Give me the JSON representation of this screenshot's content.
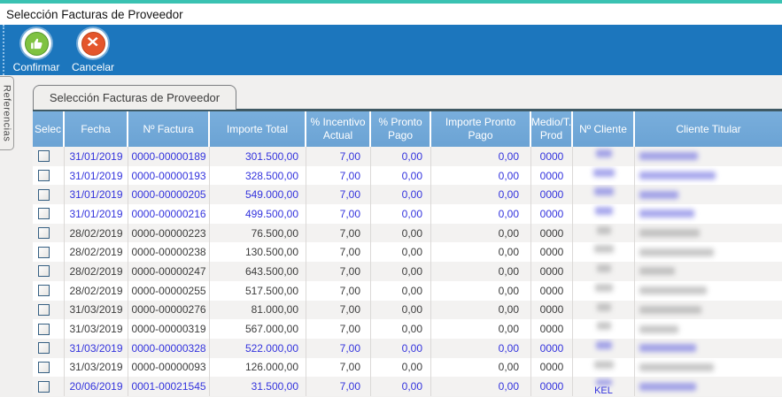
{
  "window": {
    "title": "Selección Facturas de Proveedor"
  },
  "toolbar": {
    "confirm_label": "Confirmar",
    "cancel_label": "Cancelar"
  },
  "side_tab": {
    "label": "Referencias"
  },
  "tab": {
    "label": "Selección Facturas de Proveedor"
  },
  "icons": {
    "confirm": "thumbs-up-icon",
    "cancel": "cancel-x-icon"
  },
  "colors": {
    "top_strip": "#3AC2B2",
    "toolbar_bg": "#1C76BD",
    "header_bg": "#72A9DA",
    "confirm_green": "#7FC241",
    "cancel_red": "#E4562C",
    "row_alt_bg": "#F3F2F1",
    "highlight_text": "#3333DD",
    "normal_text": "#3C3C3C"
  },
  "table": {
    "columns": [
      {
        "key": "selec",
        "label": "Selec"
      },
      {
        "key": "fecha",
        "label": "Fecha"
      },
      {
        "key": "factura",
        "label": "Nº Factura"
      },
      {
        "key": "importe_total",
        "label": "Importe Total"
      },
      {
        "key": "incentivo",
        "label": "% Incentivo Actual"
      },
      {
        "key": "pronto_pago",
        "label": "% Pronto Pago"
      },
      {
        "key": "importe_pronto",
        "label": "Importe Pronto Pago"
      },
      {
        "key": "medio",
        "label": "Medio/T. Prod"
      },
      {
        "key": "cliente_num",
        "label": "Nº Cliente"
      },
      {
        "key": "cliente_titular",
        "label": "Cliente Titular"
      }
    ],
    "rows": [
      {
        "checked": false,
        "fecha": "31/01/2019",
        "factura": "0000-00000189",
        "importe_total": "301.500,00",
        "incentivo": "7,00",
        "pronto_pago": "0,00",
        "importe_pronto": "0,00",
        "medio": "0000",
        "cliente_num_redacted_w": 18,
        "cliente_titular_redacted_w": 66,
        "highlighted": true,
        "cliente_num_visible": ""
      },
      {
        "checked": false,
        "fecha": "31/01/2019",
        "factura": "0000-00000193",
        "importe_total": "328.500,00",
        "incentivo": "7,00",
        "pronto_pago": "0,00",
        "importe_pronto": "0,00",
        "medio": "0000",
        "cliente_num_redacted_w": 24,
        "cliente_titular_redacted_w": 86,
        "highlighted": true,
        "cliente_num_visible": ""
      },
      {
        "checked": false,
        "fecha": "31/01/2019",
        "factura": "0000-00000205",
        "importe_total": "549.000,00",
        "incentivo": "7,00",
        "pronto_pago": "0,00",
        "importe_pronto": "0,00",
        "medio": "0000",
        "cliente_num_redacted_w": 22,
        "cliente_titular_redacted_w": 44,
        "highlighted": true,
        "cliente_num_visible": ""
      },
      {
        "checked": false,
        "fecha": "31/01/2019",
        "factura": "0000-00000216",
        "importe_total": "499.500,00",
        "incentivo": "7,00",
        "pronto_pago": "0,00",
        "importe_pronto": "0,00",
        "medio": "0000",
        "cliente_num_redacted_w": 20,
        "cliente_titular_redacted_w": 62,
        "highlighted": true,
        "cliente_num_visible": ""
      },
      {
        "checked": false,
        "fecha": "28/02/2019",
        "factura": "0000-00000223",
        "importe_total": "76.500,00",
        "incentivo": "7,00",
        "pronto_pago": "0,00",
        "importe_pronto": "0,00",
        "medio": "0000",
        "cliente_num_redacted_w": 16,
        "cliente_titular_redacted_w": 68,
        "highlighted": false,
        "cliente_num_visible": ""
      },
      {
        "checked": false,
        "fecha": "28/02/2019",
        "factura": "0000-00000238",
        "importe_total": "130.500,00",
        "incentivo": "7,00",
        "pronto_pago": "0,00",
        "importe_pronto": "0,00",
        "medio": "0000",
        "cliente_num_redacted_w": 22,
        "cliente_titular_redacted_w": 84,
        "highlighted": false,
        "cliente_num_visible": ""
      },
      {
        "checked": false,
        "fecha": "28/02/2019",
        "factura": "0000-00000247",
        "importe_total": "643.500,00",
        "incentivo": "7,00",
        "pronto_pago": "0,00",
        "importe_pronto": "0,00",
        "medio": "0000",
        "cliente_num_redacted_w": 16,
        "cliente_titular_redacted_w": 40,
        "highlighted": false,
        "cliente_num_visible": ""
      },
      {
        "checked": false,
        "fecha": "28/02/2019",
        "factura": "0000-00000255",
        "importe_total": "517.500,00",
        "incentivo": "7,00",
        "pronto_pago": "0,00",
        "importe_pronto": "0,00",
        "medio": "0000",
        "cliente_num_redacted_w": 20,
        "cliente_titular_redacted_w": 76,
        "highlighted": false,
        "cliente_num_visible": ""
      },
      {
        "checked": false,
        "fecha": "31/03/2019",
        "factura": "0000-00000276",
        "importe_total": "81.000,00",
        "incentivo": "7,00",
        "pronto_pago": "0,00",
        "importe_pronto": "0,00",
        "medio": "0000",
        "cliente_num_redacted_w": 16,
        "cliente_titular_redacted_w": 70,
        "highlighted": false,
        "cliente_num_visible": ""
      },
      {
        "checked": false,
        "fecha": "31/03/2019",
        "factura": "0000-00000319",
        "importe_total": "567.000,00",
        "incentivo": "7,00",
        "pronto_pago": "0,00",
        "importe_pronto": "0,00",
        "medio": "0000",
        "cliente_num_redacted_w": 16,
        "cliente_titular_redacted_w": 44,
        "highlighted": false,
        "cliente_num_visible": ""
      },
      {
        "checked": false,
        "fecha": "31/03/2019",
        "factura": "0000-00000328",
        "importe_total": "522.000,00",
        "incentivo": "7,00",
        "pronto_pago": "0,00",
        "importe_pronto": "0,00",
        "medio": "0000",
        "cliente_num_redacted_w": 18,
        "cliente_titular_redacted_w": 64,
        "highlighted": true,
        "cliente_num_visible": ""
      },
      {
        "checked": false,
        "fecha": "31/03/2019",
        "factura": "0000-00000093",
        "importe_total": "126.000,00",
        "incentivo": "7,00",
        "pronto_pago": "0,00",
        "importe_pronto": "0,00",
        "medio": "0000",
        "cliente_num_redacted_w": 22,
        "cliente_titular_redacted_w": 84,
        "highlighted": false,
        "cliente_num_visible": ""
      },
      {
        "checked": false,
        "fecha": "20/06/2019",
        "factura": "0001-00021545",
        "importe_total": "31.500,00",
        "incentivo": "7,00",
        "pronto_pago": "0,00",
        "importe_pronto": "0,00",
        "medio": "0000",
        "cliente_num_redacted_w": 18,
        "cliente_titular_redacted_w": 64,
        "highlighted": true,
        "cliente_num_visible": "KEL"
      }
    ]
  }
}
